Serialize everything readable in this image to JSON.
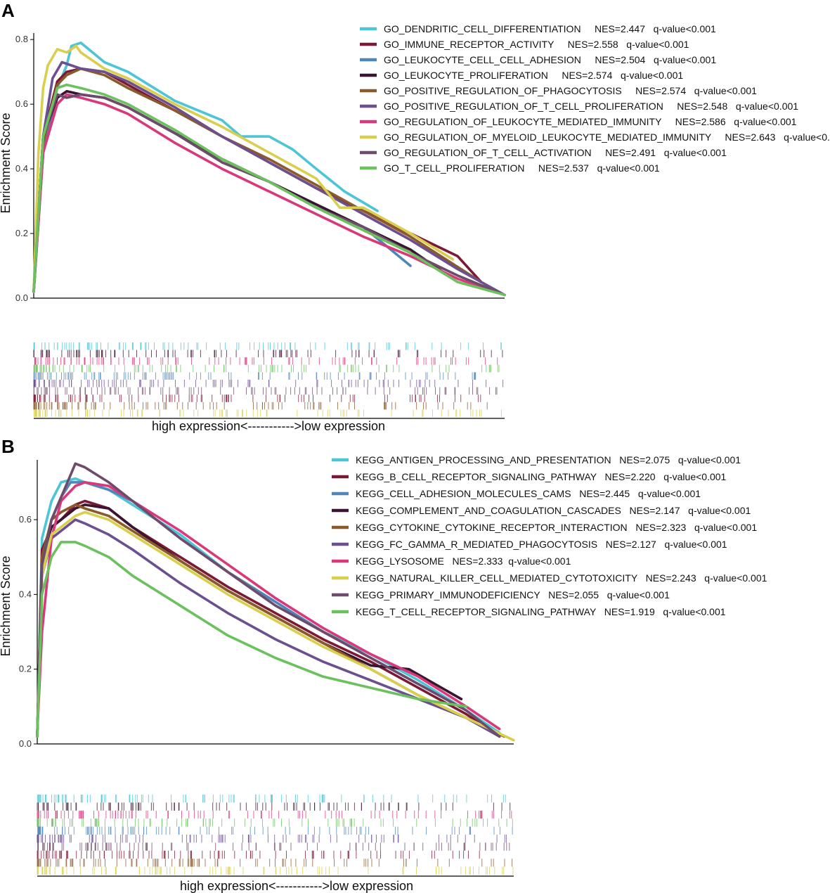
{
  "panels": [
    {
      "letter": "A",
      "ylabel": "Enrichment Score",
      "direction_label": "high expression<----------->low expression",
      "y_ticks": [
        "0.0",
        "0.2",
        "0.4",
        "0.6",
        "0.8"
      ],
      "legend": [
        "GO_DENDRITIC_CELL_DIFFERENTIATION     NES=2.447   q-value<0.001",
        "GO_IMMUNE_RECEPTOR_ACTIVITY     NES=2.558   q-value<0.001",
        "GO_LEUKOCYTE_CELL_CELL_ADHESION     NES=2.504   q-value<0.001",
        "GO_LEUKOCYTE_PROLIFERATION     NES=2.574   q-value<0.001",
        "GO_POSITIVE_REGULATION_OF_PHAGOCYTOSIS     NES=2.574   q-value<0.001",
        "GO_POSITIVE_REGULATION_OF_T_CELL_PROLIFERATION     NES=2.548   q-value<0.001",
        "GO_REGULATION_OF_LEUKOCYTE_MEDIATED_IMMUNITY     NES=2.586   q-value<0.001",
        "GO_REGULATION_OF_MYELOID_LEUKOCYTE_MEDIATED_IMMUNITY     NES=2.643   q-value<0.0",
        "GO_REGULATION_OF_T_CELL_ACTIVATION     NES=2.491   q-value<0.001",
        "GO_T_CELL_PROLIFERATION     NES=2.537   q-value<0.001"
      ]
    },
    {
      "letter": "B",
      "ylabel": "Enrichment Score",
      "direction_label": "high expression<----------->low expression",
      "y_ticks": [
        "0.0",
        "0.2",
        "0.4",
        "0.6"
      ],
      "legend": [
        "KEGG_ANTIGEN_PROCESSING_AND_PRESENTATION   NES=2.075   q-value<0.001",
        "KEGG_B_CELL_RECEPTOR_SIGNALING_PATHWAY   NES=2.220   q-value<0.001",
        "KEGG_CELL_ADHESION_MOLECULES_CAMS   NES=2.445   q-value<0.001",
        "KEGG_COMPLEMENT_AND_COAGULATION_CASCADES   NES=2.147   q-value<0.001",
        "KEGG_CYTOKINE_CYTOKINE_RECEPTOR_INTERACTION   NES=2.323   q-value<0.001",
        "KEGG_FC_GAMMA_R_MEDIATED_PHAGOCYTOSIS   NES=2.127   q-value<0.001",
        "KEGG_LYSOSOME   NES=2.333  q-value<0.001",
        "KEGG_NATURAL_KILLER_CELL_MEDIATED_CYTOTOXICITY   NES=2.243   q-value<0.001",
        "KEGG_PRIMARY_IMMUNODEFICIENCY   NES=2.055   q-value<0.001",
        "KEGG_T_CELL_RECEPTOR_SIGNALING_PATHWAY   NES=1.919   q-value<0.001"
      ]
    }
  ],
  "chart_data": [
    {
      "type": "line",
      "ylabel": "Enrichment Score",
      "ylim": [
        0,
        0.82
      ],
      "grid": false,
      "legend_position": "top-right",
      "series": [
        {
          "name": "GO_DENDRITIC_CELL_DIFFERENTIATION",
          "nes": 2.447,
          "color": "#4cc5d6",
          "x": [
            0,
            0.02,
            0.05,
            0.07,
            0.08,
            0.1,
            0.15,
            0.2,
            0.3,
            0.4,
            0.44,
            0.5,
            0.55,
            0.6,
            0.66,
            0.73
          ],
          "y": [
            0.02,
            0.45,
            0.65,
            0.72,
            0.78,
            0.79,
            0.73,
            0.7,
            0.61,
            0.55,
            0.5,
            0.5,
            0.46,
            0.4,
            0.33,
            0.27
          ]
        },
        {
          "name": "GO_IMMUNE_RECEPTOR_ACTIVITY",
          "nes": 2.558,
          "color": "#7b1a34",
          "x": [
            0,
            0.02,
            0.05,
            0.07,
            0.1,
            0.15,
            0.2,
            0.3,
            0.4,
            0.5,
            0.6,
            0.7,
            0.8,
            0.9,
            0.95
          ],
          "y": [
            0.02,
            0.5,
            0.67,
            0.7,
            0.71,
            0.7,
            0.66,
            0.58,
            0.5,
            0.42,
            0.34,
            0.27,
            0.2,
            0.13,
            0.05
          ]
        },
        {
          "name": "GO_LEUKOCYTE_CELL_CELL_ADHESION",
          "nes": 2.504,
          "color": "#4f86b8",
          "x": [
            0,
            0.02,
            0.05,
            0.07,
            0.1,
            0.15,
            0.2,
            0.3,
            0.4,
            0.5,
            0.6,
            0.7,
            0.8
          ],
          "y": [
            0.02,
            0.45,
            0.62,
            0.64,
            0.63,
            0.62,
            0.59,
            0.51,
            0.43,
            0.36,
            0.29,
            0.22,
            0.1
          ]
        },
        {
          "name": "GO_LEUKOCYTE_PROLIFERATION",
          "nes": 2.574,
          "color": "#3a1530",
          "x": [
            0,
            0.02,
            0.05,
            0.07,
            0.1,
            0.15,
            0.2,
            0.3,
            0.4,
            0.5,
            0.6,
            0.7,
            0.8,
            0.87
          ],
          "y": [
            0.02,
            0.5,
            0.62,
            0.64,
            0.63,
            0.62,
            0.59,
            0.51,
            0.43,
            0.36,
            0.29,
            0.22,
            0.15,
            0.08
          ]
        },
        {
          "name": "GO_POSITIVE_REGULATION_OF_PHAGOCYTOSIS",
          "nes": 2.574,
          "color": "#8b5a2b",
          "x": [
            0,
            0.02,
            0.05,
            0.07,
            0.1,
            0.15,
            0.2,
            0.3,
            0.4,
            0.5,
            0.6,
            0.7,
            0.8,
            0.95
          ],
          "y": [
            0.02,
            0.48,
            0.66,
            0.69,
            0.71,
            0.69,
            0.65,
            0.58,
            0.5,
            0.43,
            0.35,
            0.27,
            0.19,
            0.05
          ]
        },
        {
          "name": "GO_POSITIVE_REGULATION_OF_T_CELL_PROLIFERATION",
          "nes": 2.548,
          "color": "#6b4f8f",
          "x": [
            0,
            0.02,
            0.04,
            0.06,
            0.08,
            0.1,
            0.15,
            0.2,
            0.3,
            0.4,
            0.5,
            0.6,
            0.7,
            0.8,
            0.9,
            1.0
          ],
          "y": [
            0.02,
            0.5,
            0.68,
            0.73,
            0.72,
            0.71,
            0.7,
            0.67,
            0.59,
            0.5,
            0.42,
            0.34,
            0.26,
            0.18,
            0.09,
            0.01
          ]
        },
        {
          "name": "GO_REGULATION_OF_LEUKOCYTE_MEDIATED_IMMUNITY",
          "nes": 2.586,
          "color": "#d9387a",
          "x": [
            0,
            0.02,
            0.05,
            0.07,
            0.1,
            0.15,
            0.2,
            0.3,
            0.4,
            0.5,
            0.6,
            0.7,
            0.8,
            0.9,
            1.0
          ],
          "y": [
            0.02,
            0.45,
            0.6,
            0.63,
            0.62,
            0.6,
            0.57,
            0.48,
            0.4,
            0.33,
            0.26,
            0.19,
            0.13,
            0.06,
            0.01
          ]
        },
        {
          "name": "GO_REGULATION_OF_MYELOID_LEUKOCYTE_MEDIATED_IMMUNITY",
          "nes": 2.643,
          "color": "#d9cf4f",
          "x": [
            0,
            0.01,
            0.02,
            0.03,
            0.05,
            0.07,
            0.09,
            0.1,
            0.15,
            0.2,
            0.3,
            0.4,
            0.5,
            0.6,
            0.65,
            0.7,
            0.8,
            0.89
          ],
          "y": [
            0.02,
            0.45,
            0.65,
            0.72,
            0.77,
            0.76,
            0.78,
            0.76,
            0.71,
            0.68,
            0.6,
            0.53,
            0.45,
            0.37,
            0.28,
            0.28,
            0.2,
            0.12
          ]
        },
        {
          "name": "GO_REGULATION_OF_T_CELL_ACTIVATION",
          "nes": 2.491,
          "color": "#6e4b6a",
          "x": [
            0,
            0.02,
            0.05,
            0.07,
            0.1,
            0.15,
            0.2,
            0.3,
            0.4,
            0.5,
            0.6,
            0.7,
            0.8,
            0.9,
            1.0
          ],
          "y": [
            0.02,
            0.5,
            0.63,
            0.62,
            0.63,
            0.62,
            0.59,
            0.51,
            0.42,
            0.36,
            0.28,
            0.22,
            0.14,
            0.07,
            0.01
          ]
        },
        {
          "name": "GO_T_CELL_PROLIFERATION",
          "nes": 2.537,
          "color": "#6cc15f",
          "x": [
            0,
            0.02,
            0.05,
            0.07,
            0.1,
            0.15,
            0.2,
            0.3,
            0.4,
            0.5,
            0.6,
            0.7,
            0.8,
            0.9,
            1.0
          ],
          "y": [
            0.02,
            0.5,
            0.65,
            0.66,
            0.65,
            0.63,
            0.6,
            0.52,
            0.43,
            0.36,
            0.28,
            0.21,
            0.14,
            0.05,
            0.01
          ]
        }
      ]
    },
    {
      "type": "line",
      "ylabel": "Enrichment Score",
      "ylim": [
        0,
        0.76
      ],
      "grid": false,
      "legend_position": "top-right",
      "series": [
        {
          "name": "KEGG_ANTIGEN_PROCESSING_AND_PRESENTATION",
          "nes": 2.075,
          "color": "#4cc5d6",
          "x": [
            0,
            0.01,
            0.03,
            0.05,
            0.08,
            0.1,
            0.15,
            0.2,
            0.3,
            0.4,
            0.5,
            0.6,
            0.7,
            0.8,
            0.9,
            0.97
          ],
          "y": [
            0.02,
            0.55,
            0.65,
            0.7,
            0.71,
            0.7,
            0.68,
            0.64,
            0.56,
            0.46,
            0.38,
            0.3,
            0.24,
            0.17,
            0.09,
            0.03
          ]
        },
        {
          "name": "KEGG_B_CELL_RECEPTOR_SIGNALING_PATHWAY",
          "nes": 2.22,
          "color": "#7b1a34",
          "x": [
            0,
            0.01,
            0.03,
            0.05,
            0.08,
            0.1,
            0.15,
            0.2,
            0.3,
            0.4,
            0.5,
            0.6,
            0.7,
            0.8,
            0.9,
            0.97
          ],
          "y": [
            0.02,
            0.52,
            0.58,
            0.6,
            0.64,
            0.65,
            0.63,
            0.58,
            0.5,
            0.42,
            0.35,
            0.28,
            0.22,
            0.15,
            0.08,
            0.02
          ]
        },
        {
          "name": "KEGG_CELL_ADHESION_MOLECULES_CAMS",
          "nes": 2.445,
          "color": "#4f86b8",
          "x": [
            0,
            0.01,
            0.03,
            0.05,
            0.07,
            0.1,
            0.15,
            0.2,
            0.3,
            0.4,
            0.5,
            0.6,
            0.7,
            0.8,
            0.9
          ],
          "y": [
            0.02,
            0.45,
            0.6,
            0.66,
            0.7,
            0.7,
            0.68,
            0.65,
            0.55,
            0.46,
            0.38,
            0.3,
            0.23,
            0.16,
            0.09
          ]
        },
        {
          "name": "KEGG_COMPLEMENT_AND_COAGULATION_CASCADES",
          "nes": 2.147,
          "color": "#3a1530",
          "x": [
            0,
            0.01,
            0.03,
            0.05,
            0.08,
            0.1,
            0.15,
            0.2,
            0.3,
            0.4,
            0.5,
            0.6,
            0.7,
            0.78,
            0.89
          ],
          "y": [
            0.02,
            0.5,
            0.58,
            0.6,
            0.63,
            0.64,
            0.63,
            0.58,
            0.49,
            0.41,
            0.34,
            0.27,
            0.21,
            0.2,
            0.12
          ]
        },
        {
          "name": "KEGG_CYTOKINE_CYTOKINE_RECEPTOR_INTERACTION",
          "nes": 2.323,
          "color": "#8b5a2b",
          "x": [
            0,
            0.01,
            0.03,
            0.05,
            0.08,
            0.1,
            0.15,
            0.2,
            0.3,
            0.4,
            0.5,
            0.6,
            0.7,
            0.8,
            0.9,
            0.98
          ],
          "y": [
            0.02,
            0.5,
            0.6,
            0.62,
            0.64,
            0.63,
            0.61,
            0.57,
            0.49,
            0.41,
            0.34,
            0.27,
            0.2,
            0.13,
            0.07,
            0.02
          ]
        },
        {
          "name": "KEGG_FC_GAMMA_R_MEDIATED_PHAGOCYTOSIS",
          "nes": 2.127,
          "color": "#6b4f8f",
          "x": [
            0,
            0.01,
            0.03,
            0.05,
            0.08,
            0.1,
            0.15,
            0.2,
            0.3,
            0.4,
            0.5,
            0.6,
            0.7,
            0.8,
            0.9,
            0.97
          ],
          "y": [
            0.02,
            0.45,
            0.55,
            0.57,
            0.6,
            0.59,
            0.56,
            0.52,
            0.43,
            0.35,
            0.28,
            0.22,
            0.17,
            0.12,
            0.07,
            0.02
          ]
        },
        {
          "name": "KEGG_LYSOSOME",
          "nes": 2.333,
          "color": "#d9387a",
          "x": [
            0,
            0.01,
            0.03,
            0.05,
            0.08,
            0.1,
            0.15,
            0.2,
            0.3,
            0.4,
            0.5,
            0.6,
            0.7,
            0.8,
            0.9,
            0.97
          ],
          "y": [
            0.03,
            0.3,
            0.55,
            0.65,
            0.69,
            0.7,
            0.69,
            0.65,
            0.57,
            0.48,
            0.39,
            0.31,
            0.24,
            0.18,
            0.1,
            0.04
          ]
        },
        {
          "name": "KEGG_NATURAL_KILLER_CELL_MEDIATED_CYTOTOXICITY",
          "nes": 2.243,
          "color": "#d9cf4f",
          "x": [
            0,
            0.01,
            0.03,
            0.05,
            0.08,
            0.1,
            0.15,
            0.2,
            0.3,
            0.4,
            0.5,
            0.6,
            0.7,
            0.8,
            0.9,
            1.0
          ],
          "y": [
            0.02,
            0.45,
            0.56,
            0.58,
            0.61,
            0.62,
            0.6,
            0.56,
            0.48,
            0.4,
            0.33,
            0.26,
            0.2,
            0.13,
            0.07,
            0.01
          ]
        },
        {
          "name": "KEGG_PRIMARY_IMMUNODEFICIENCY",
          "nes": 2.055,
          "color": "#6e4b6a",
          "x": [
            0,
            0.01,
            0.03,
            0.05,
            0.07,
            0.08,
            0.1,
            0.15,
            0.2,
            0.3,
            0.4,
            0.5,
            0.6,
            0.7,
            0.8,
            0.9,
            0.97
          ],
          "y": [
            0.02,
            0.48,
            0.6,
            0.66,
            0.72,
            0.75,
            0.74,
            0.7,
            0.65,
            0.55,
            0.46,
            0.37,
            0.3,
            0.23,
            0.16,
            0.09,
            0.02
          ]
        },
        {
          "name": "KEGG_T_CELL_RECEPTOR_SIGNALING_PATHWAY",
          "nes": 1.919,
          "color": "#6cc15f",
          "x": [
            0,
            0.01,
            0.03,
            0.05,
            0.08,
            0.1,
            0.15,
            0.2,
            0.3,
            0.4,
            0.5,
            0.6,
            0.7,
            0.8,
            0.9
          ],
          "y": [
            0.02,
            0.4,
            0.5,
            0.54,
            0.54,
            0.53,
            0.5,
            0.45,
            0.37,
            0.29,
            0.23,
            0.18,
            0.15,
            0.12,
            0.1
          ]
        }
      ]
    }
  ]
}
